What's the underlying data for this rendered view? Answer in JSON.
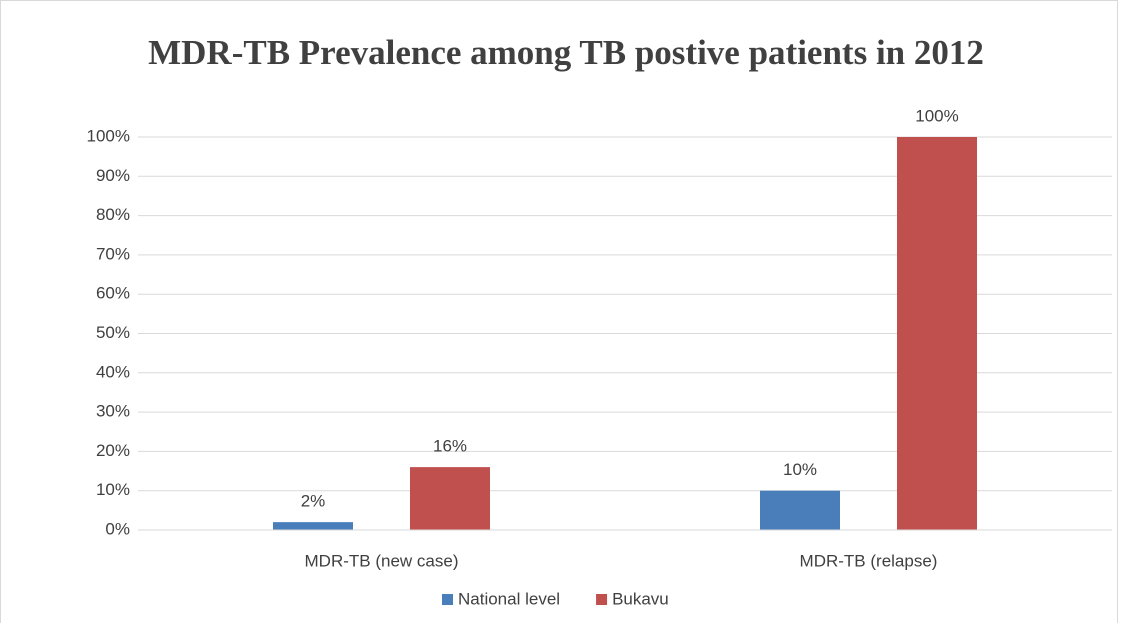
{
  "chart_data": {
    "type": "bar",
    "title": "MDR-TB Prevalence among TB postive patients in 2012",
    "categories": [
      "MDR-TB (new case)",
      "MDR-TB (relapse)"
    ],
    "series": [
      {
        "name": "National level",
        "color": "#4a7ebb",
        "values": [
          2,
          10
        ],
        "value_labels": [
          "2%",
          "10%"
        ]
      },
      {
        "name": "Bukavu",
        "color": "#c0504d",
        "values": [
          16,
          100
        ],
        "value_labels": [
          "16%",
          "100%"
        ]
      }
    ],
    "ylim": [
      0,
      100
    ],
    "yticks": [
      {
        "value": 0,
        "label": "0%"
      },
      {
        "value": 10,
        "label": "10%"
      },
      {
        "value": 20,
        "label": "20%"
      },
      {
        "value": 30,
        "label": "30%"
      },
      {
        "value": 40,
        "label": "40%"
      },
      {
        "value": 50,
        "label": "50%"
      },
      {
        "value": 60,
        "label": "60%"
      },
      {
        "value": 70,
        "label": "70%"
      },
      {
        "value": 80,
        "label": "80%"
      },
      {
        "value": 90,
        "label": "90%"
      },
      {
        "value": 100,
        "label": "100%"
      }
    ],
    "grid": true,
    "legend": "bottom"
  }
}
